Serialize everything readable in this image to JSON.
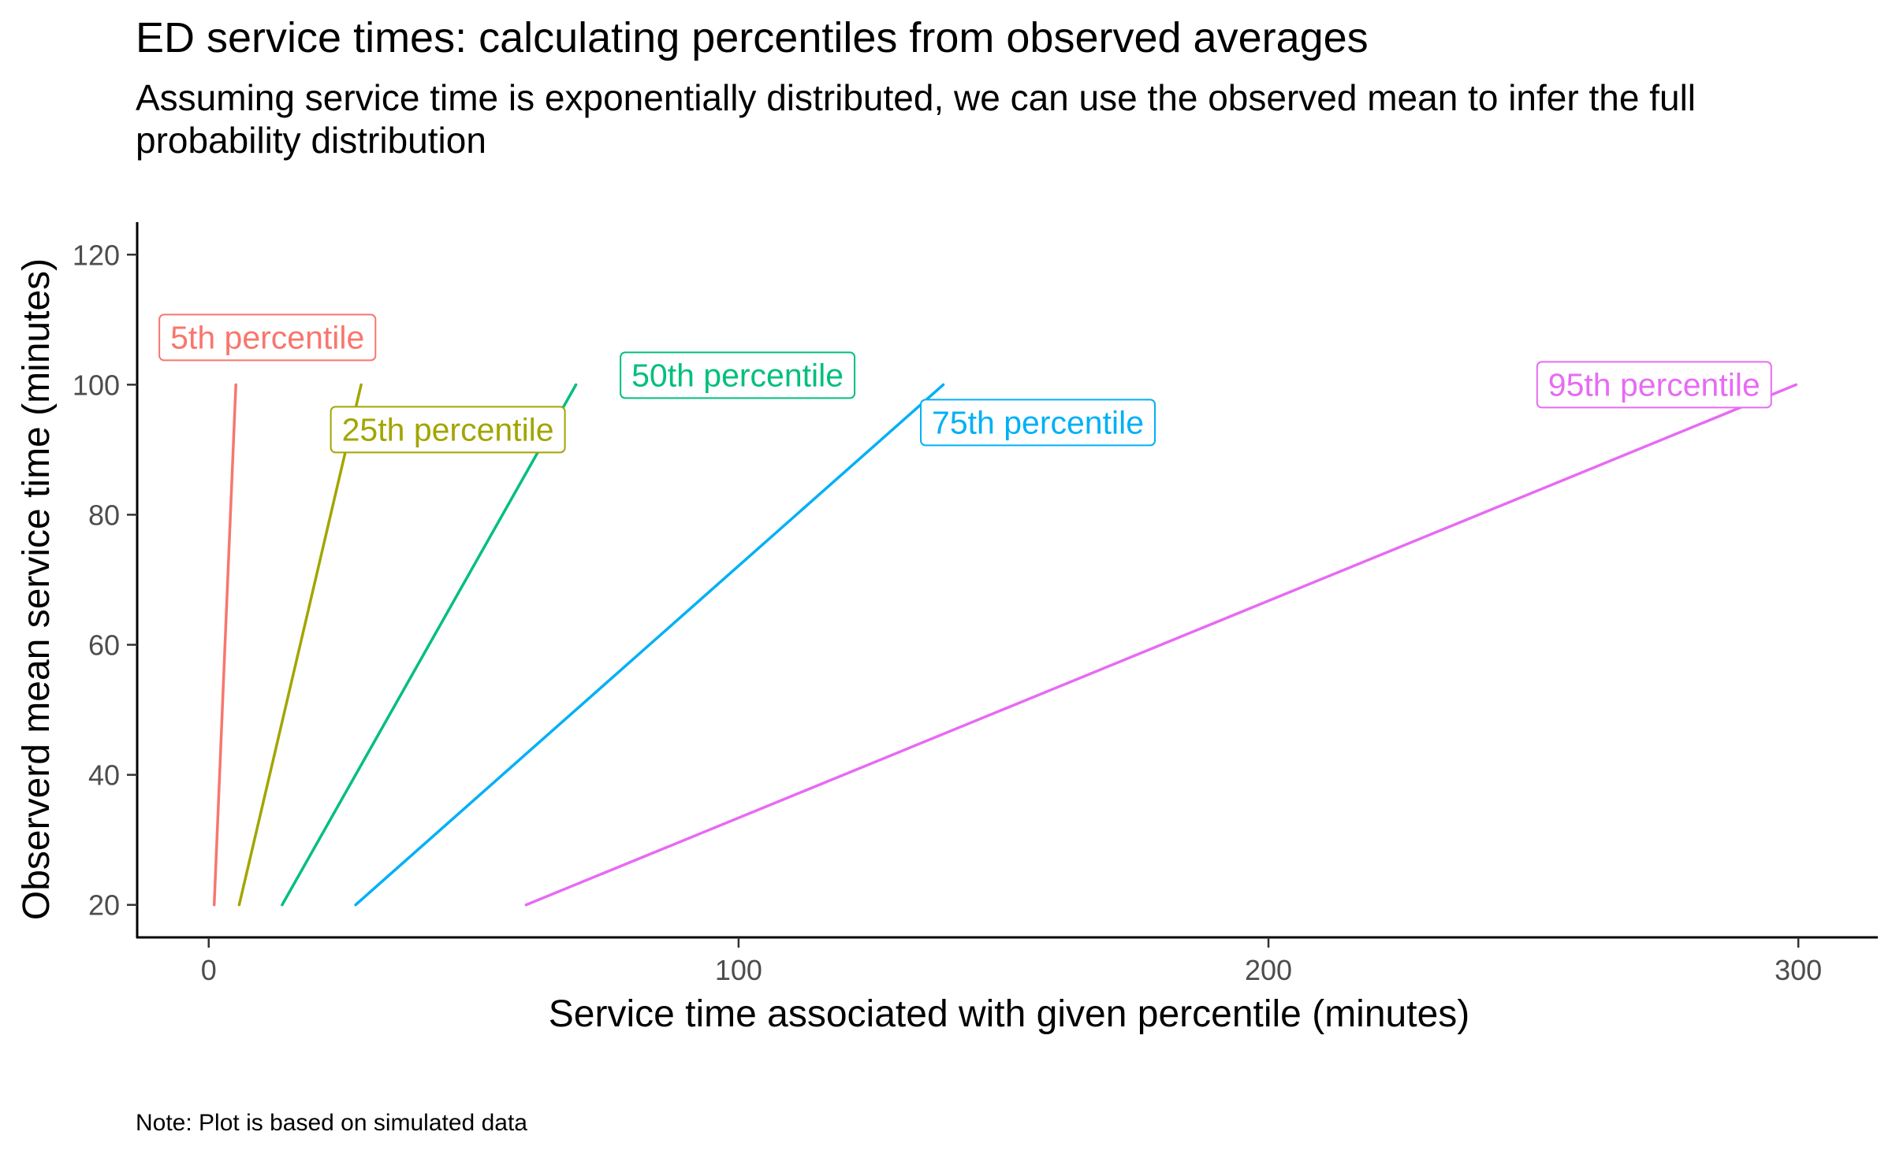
{
  "chart_data": {
    "type": "line",
    "title": "ED service times: calculating percentiles from observed averages",
    "subtitle_lines": [
      "Assuming service time is exponentially distributed, we can use the observed mean to infer the full",
      "probability distribution"
    ],
    "xlabel": "Service time associated with given percentile (minutes)",
    "ylabel": "Observerd mean service time (minutes)",
    "caption": "Note: Plot is based on simulated data",
    "xlim": [
      -13.5,
      315
    ],
    "ylim": [
      15,
      125
    ],
    "xticks": [
      0,
      100,
      200,
      300
    ],
    "yticks": [
      20,
      40,
      60,
      80,
      100,
      120
    ],
    "grid": false,
    "legend": "none (direct labels)",
    "series": [
      {
        "name": "5th percentile",
        "color": "#F8766D",
        "x": [
          1.03,
          2.06,
          3.08,
          4.1,
          5.13
        ],
        "y": [
          20,
          40,
          60,
          80,
          100
        ]
      },
      {
        "name": "25th percentile",
        "color": "#A3A500",
        "x": [
          5.75,
          11.51,
          17.26,
          23.01,
          28.77
        ],
        "y": [
          20,
          40,
          60,
          80,
          100
        ]
      },
      {
        "name": "50th percentile",
        "color": "#00BF7D",
        "x": [
          13.86,
          27.73,
          41.59,
          55.45,
          69.31
        ],
        "y": [
          20,
          40,
          60,
          80,
          100
        ]
      },
      {
        "name": "75th percentile",
        "color": "#00B0F6",
        "x": [
          27.73,
          55.45,
          83.18,
          110.9,
          138.63
        ],
        "y": [
          20,
          40,
          60,
          80,
          100
        ]
      },
      {
        "name": "95th percentile",
        "color": "#E76BF3",
        "x": [
          59.91,
          119.83,
          179.74,
          239.66,
          299.57
        ],
        "y": [
          20,
          40,
          60,
          80,
          100
        ]
      }
    ]
  }
}
